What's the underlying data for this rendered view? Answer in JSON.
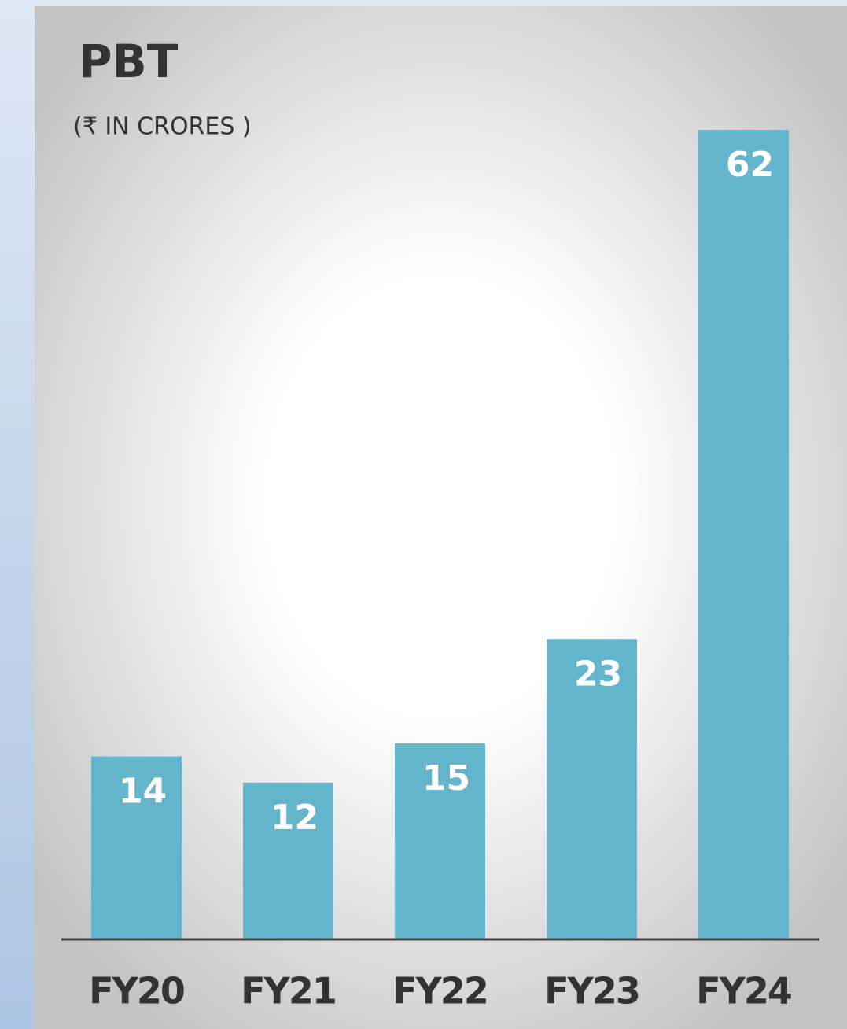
{
  "chart_data": {
    "type": "bar",
    "title": "PBT",
    "subtitle": "(₹ IN CRORES )",
    "categories": [
      "FY20",
      "FY21",
      "FY22",
      "FY23",
      "FY24"
    ],
    "values": [
      14,
      12,
      15,
      23,
      62
    ],
    "color": "#63b5cc"
  }
}
